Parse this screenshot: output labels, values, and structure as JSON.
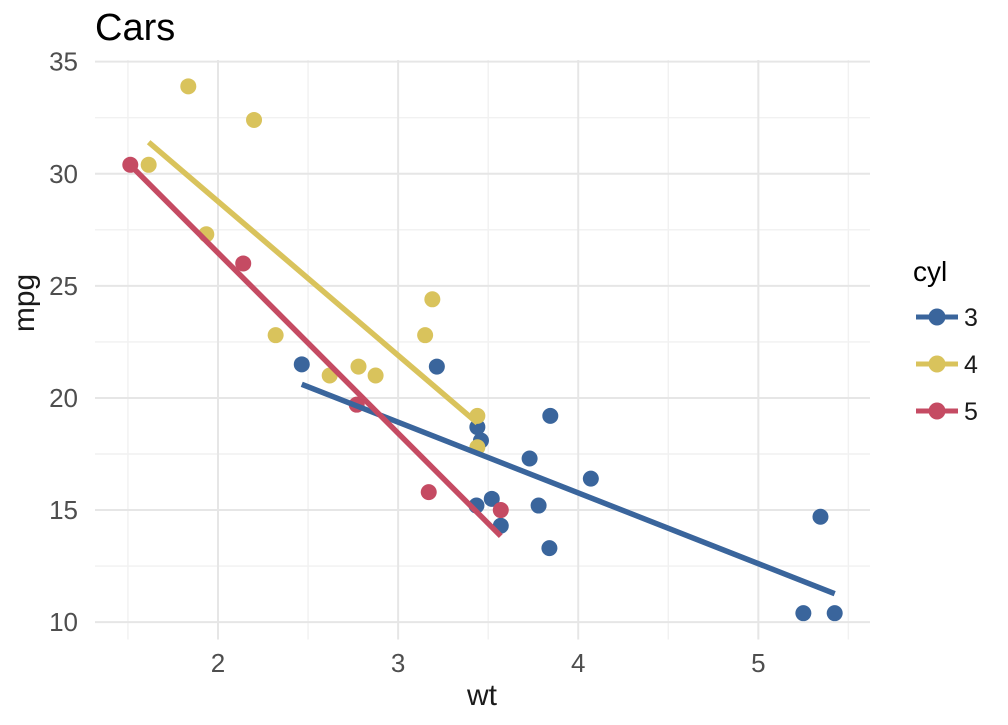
{
  "chart_data": {
    "type": "scatter",
    "title": "Cars",
    "xlabel": "wt",
    "ylabel": "mpg",
    "legend_title": "cyl",
    "legend_position": "right",
    "grid": true,
    "xlim": [
      1.317,
      5.62
    ],
    "ylim": [
      9.225,
      35.075
    ],
    "x_ticks": [
      2,
      3,
      4,
      5
    ],
    "x_minor_ticks": [
      1.5,
      2.5,
      3.5,
      4.5,
      5.5
    ],
    "y_ticks": [
      10,
      15,
      20,
      25,
      30,
      35
    ],
    "y_minor_ticks": [
      12.5,
      17.5,
      22.5,
      27.5,
      32.5
    ],
    "colors": {
      "background": "#ffffff",
      "grid_major": "#e6e6e6",
      "grid_minor": "#f1f1f1",
      "tick_text": "#4e4e4e",
      "axis_title_text": "#1a1a1a",
      "plot_title_text": "#000000",
      "legend_text": "#1a1a1a"
    },
    "series": [
      {
        "name": "3",
        "color": "#3A659C",
        "points": [
          [
            2.465,
            21.5
          ],
          [
            3.215,
            21.4
          ],
          [
            3.44,
            18.7
          ],
          [
            3.46,
            18.1
          ],
          [
            3.435,
            15.2
          ],
          [
            3.52,
            15.5
          ],
          [
            3.57,
            14.3
          ],
          [
            3.73,
            17.3
          ],
          [
            3.78,
            15.2
          ],
          [
            3.84,
            13.3
          ],
          [
            3.845,
            19.2
          ],
          [
            4.07,
            16.4
          ],
          [
            5.25,
            10.4
          ],
          [
            5.345,
            14.7
          ],
          [
            5.424,
            10.4
          ]
        ],
        "trend": {
          "x1": 2.465,
          "y1": 20.61,
          "x2": 5.424,
          "y2": 11.27
        }
      },
      {
        "name": "4",
        "color": "#D9C35C",
        "points": [
          [
            1.615,
            30.4
          ],
          [
            1.835,
            33.9
          ],
          [
            1.935,
            27.3
          ],
          [
            2.2,
            32.4
          ],
          [
            2.32,
            22.8
          ],
          [
            2.62,
            21.0
          ],
          [
            2.78,
            21.4
          ],
          [
            2.875,
            21.0
          ],
          [
            3.15,
            22.8
          ],
          [
            3.19,
            24.4
          ],
          [
            3.44,
            19.2
          ],
          [
            3.44,
            17.8
          ]
        ],
        "trend": {
          "x1": 1.615,
          "y1": 31.41,
          "x2": 3.44,
          "y2": 18.88
        }
      },
      {
        "name": "5",
        "color": "#C54B63",
        "points": [
          [
            1.513,
            30.4
          ],
          [
            2.14,
            26.0
          ],
          [
            2.77,
            19.7
          ],
          [
            3.17,
            15.8
          ],
          [
            3.57,
            15.0
          ]
        ],
        "trend": {
          "x1": 1.513,
          "y1": 30.39,
          "x2": 3.57,
          "y2": 13.84
        }
      }
    ]
  }
}
